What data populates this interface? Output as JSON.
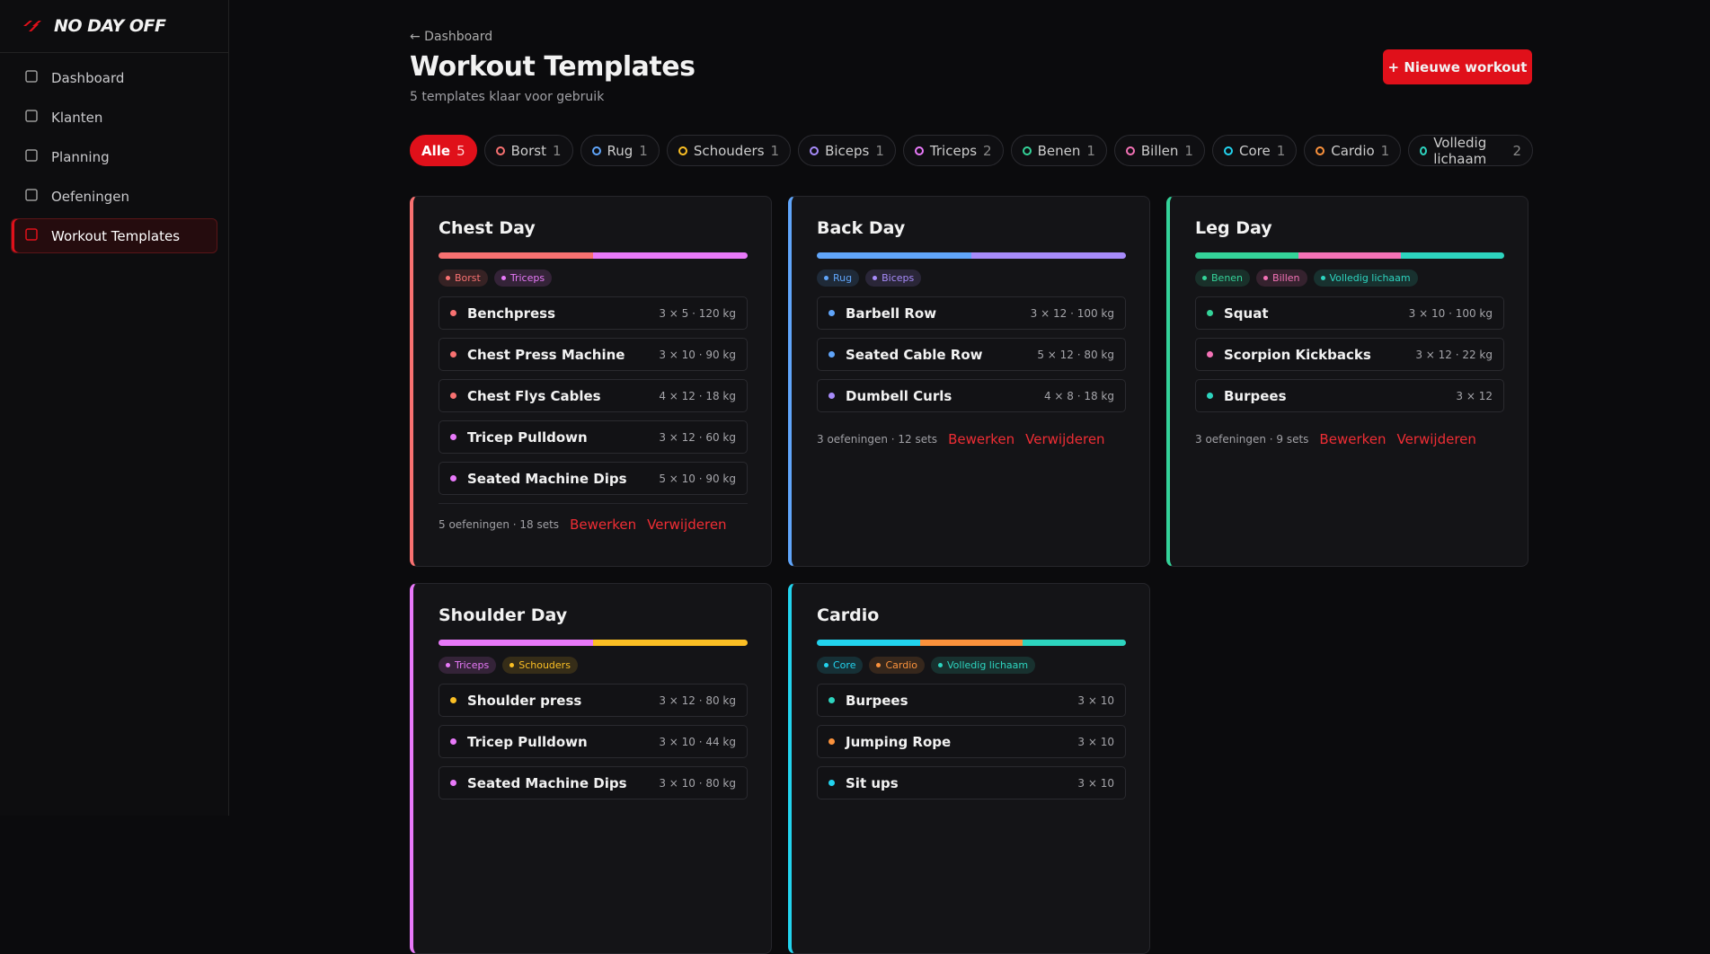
{
  "sidebar": {
    "brand": "NO DAY OFF",
    "nav": [
      "Dashboard",
      "Klanten",
      "Planning",
      "Oefeningen",
      "Workout Templates"
    ],
    "active": 4
  },
  "header": {
    "back": "← Dashboard",
    "title": "Workout Templates",
    "subtitle": "5 templates klaar voor gebruik",
    "button": "+ Nieuwe workout"
  },
  "filters": [
    {
      "label": "Alle",
      "count": 5,
      "color": "#ffffff"
    },
    {
      "label": "Borst",
      "count": 1,
      "color": "#f87171"
    },
    {
      "label": "Rug",
      "count": 1,
      "color": "#60a5fa"
    },
    {
      "label": "Schouders",
      "count": 1,
      "color": "#fbbf24"
    },
    {
      "label": "Biceps",
      "count": 1,
      "color": "#a78bfa"
    },
    {
      "label": "Triceps",
      "count": 2,
      "color": "#e879f9"
    },
    {
      "label": "Benen",
      "count": 1,
      "color": "#34d399"
    },
    {
      "label": "Billen",
      "count": 1,
      "color": "#f472b6"
    },
    {
      "label": "Core",
      "count": 1,
      "color": "#22d3ee"
    },
    {
      "label": "Cardio",
      "count": 1,
      "color": "#fb923c"
    },
    {
      "label": "Volledig lichaam",
      "count": 2,
      "color": "#2dd4bf"
    }
  ],
  "templates": [
    {
      "name": "Chest Day",
      "tags": [
        "Borst",
        "Triceps"
      ],
      "exercises": [
        {
          "name": "Benchpress",
          "detail": "3 × 5 · 120 kg",
          "color": "#f87171"
        },
        {
          "name": "Chest Press Machine",
          "detail": "3 × 10 · 90 kg",
          "color": "#f87171"
        },
        {
          "name": "Chest Flys Cables",
          "detail": "4 × 12 · 18 kg",
          "color": "#f87171"
        },
        {
          "name": "Tricep Pulldown",
          "detail": "3 × 12 · 60 kg",
          "color": "#e879f9"
        },
        {
          "name": "Seated Machine Dips",
          "detail": "5 × 10 · 90 kg",
          "color": "#e879f9"
        }
      ],
      "summary": "5 oefeningen · 18 sets",
      "actions": [
        "Bewerken",
        "Verwijderen"
      ]
    },
    {
      "name": "Back Day",
      "tags": [
        "Rug",
        "Biceps"
      ],
      "exercises": [
        {
          "name": "Barbell Row",
          "detail": "3 × 12 · 100 kg",
          "color": "#60a5fa"
        },
        {
          "name": "Seated Cable Row",
          "detail": "5 × 12 · 80 kg",
          "color": "#60a5fa"
        },
        {
          "name": "Dumbell Curls",
          "detail": "4 × 8 · 18 kg",
          "color": "#a78bfa"
        }
      ],
      "summary": "3 oefeningen · 12 sets",
      "actions": [
        "Bewerken",
        "Verwijderen"
      ]
    },
    {
      "name": "Leg Day",
      "tags": [
        "Benen",
        "Billen",
        "Volledig lichaam"
      ],
      "exercises": [
        {
          "name": "Squat",
          "detail": "3 × 10 · 100 kg",
          "color": "#34d399"
        },
        {
          "name": "Scorpion Kickbacks",
          "detail": "3 × 12 · 22 kg",
          "color": "#f472b6"
        },
        {
          "name": "Burpees",
          "detail": "3 × 12",
          "color": "#2dd4bf"
        }
      ],
      "summary": "3 oefeningen · 9 sets",
      "actions": [
        "Bewerken",
        "Verwijderen"
      ]
    },
    {
      "name": "Shoulder Day",
      "tags": [
        "Triceps",
        "Schouders"
      ],
      "exercises": [
        {
          "name": "Shoulder press",
          "detail": "3 × 12 · 80 kg",
          "color": "#fbbf24"
        },
        {
          "name": "Tricep Pulldown",
          "detail": "3 × 10 · 44 kg",
          "color": "#e879f9"
        },
        {
          "name": "Seated Machine Dips",
          "detail": "3 × 10 · 80 kg",
          "color": "#e879f9"
        }
      ]
    },
    {
      "name": "Cardio",
      "tags": [
        "Core",
        "Cardio",
        "Volledig lichaam"
      ],
      "exercises": [
        {
          "name": "Burpees",
          "detail": "3 × 10",
          "color": "#2dd4bf"
        },
        {
          "name": "Jumping Rope",
          "detail": "3 × 10",
          "color": "#fb923c"
        },
        {
          "name": "Sit ups",
          "detail": "3 × 10",
          "color": "#22d3ee"
        }
      ]
    }
  ]
}
